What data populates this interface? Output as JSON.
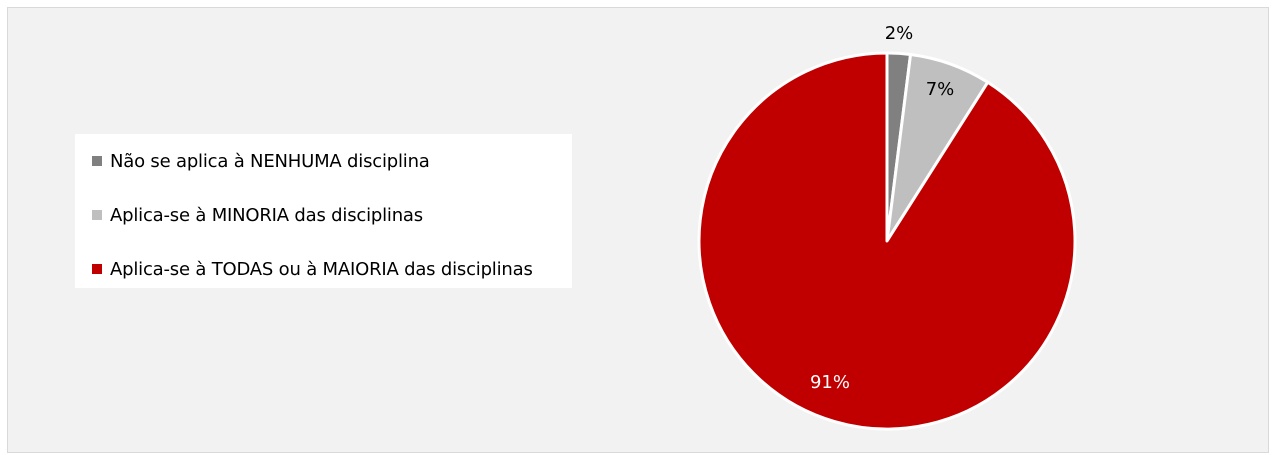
{
  "chart_data": {
    "type": "pie",
    "slices": [
      {
        "label": "Não se aplica à NENHUMA disciplina",
        "value": 2,
        "value_label": "2%",
        "color": "#808080",
        "label_color": "#000000"
      },
      {
        "label": "Aplica-se à MINORIA das disciplinas",
        "value": 7,
        "value_label": "7%",
        "color": "#bfbfbf",
        "label_color": "#000000"
      },
      {
        "label": "Aplica-se à TODAS ou à MAIORIA das disciplinas",
        "value": 91,
        "value_label": "91%",
        "color": "#c00000",
        "label_color": "#ffffff"
      }
    ],
    "legend_position": "left",
    "background": "#f2f2f2"
  }
}
